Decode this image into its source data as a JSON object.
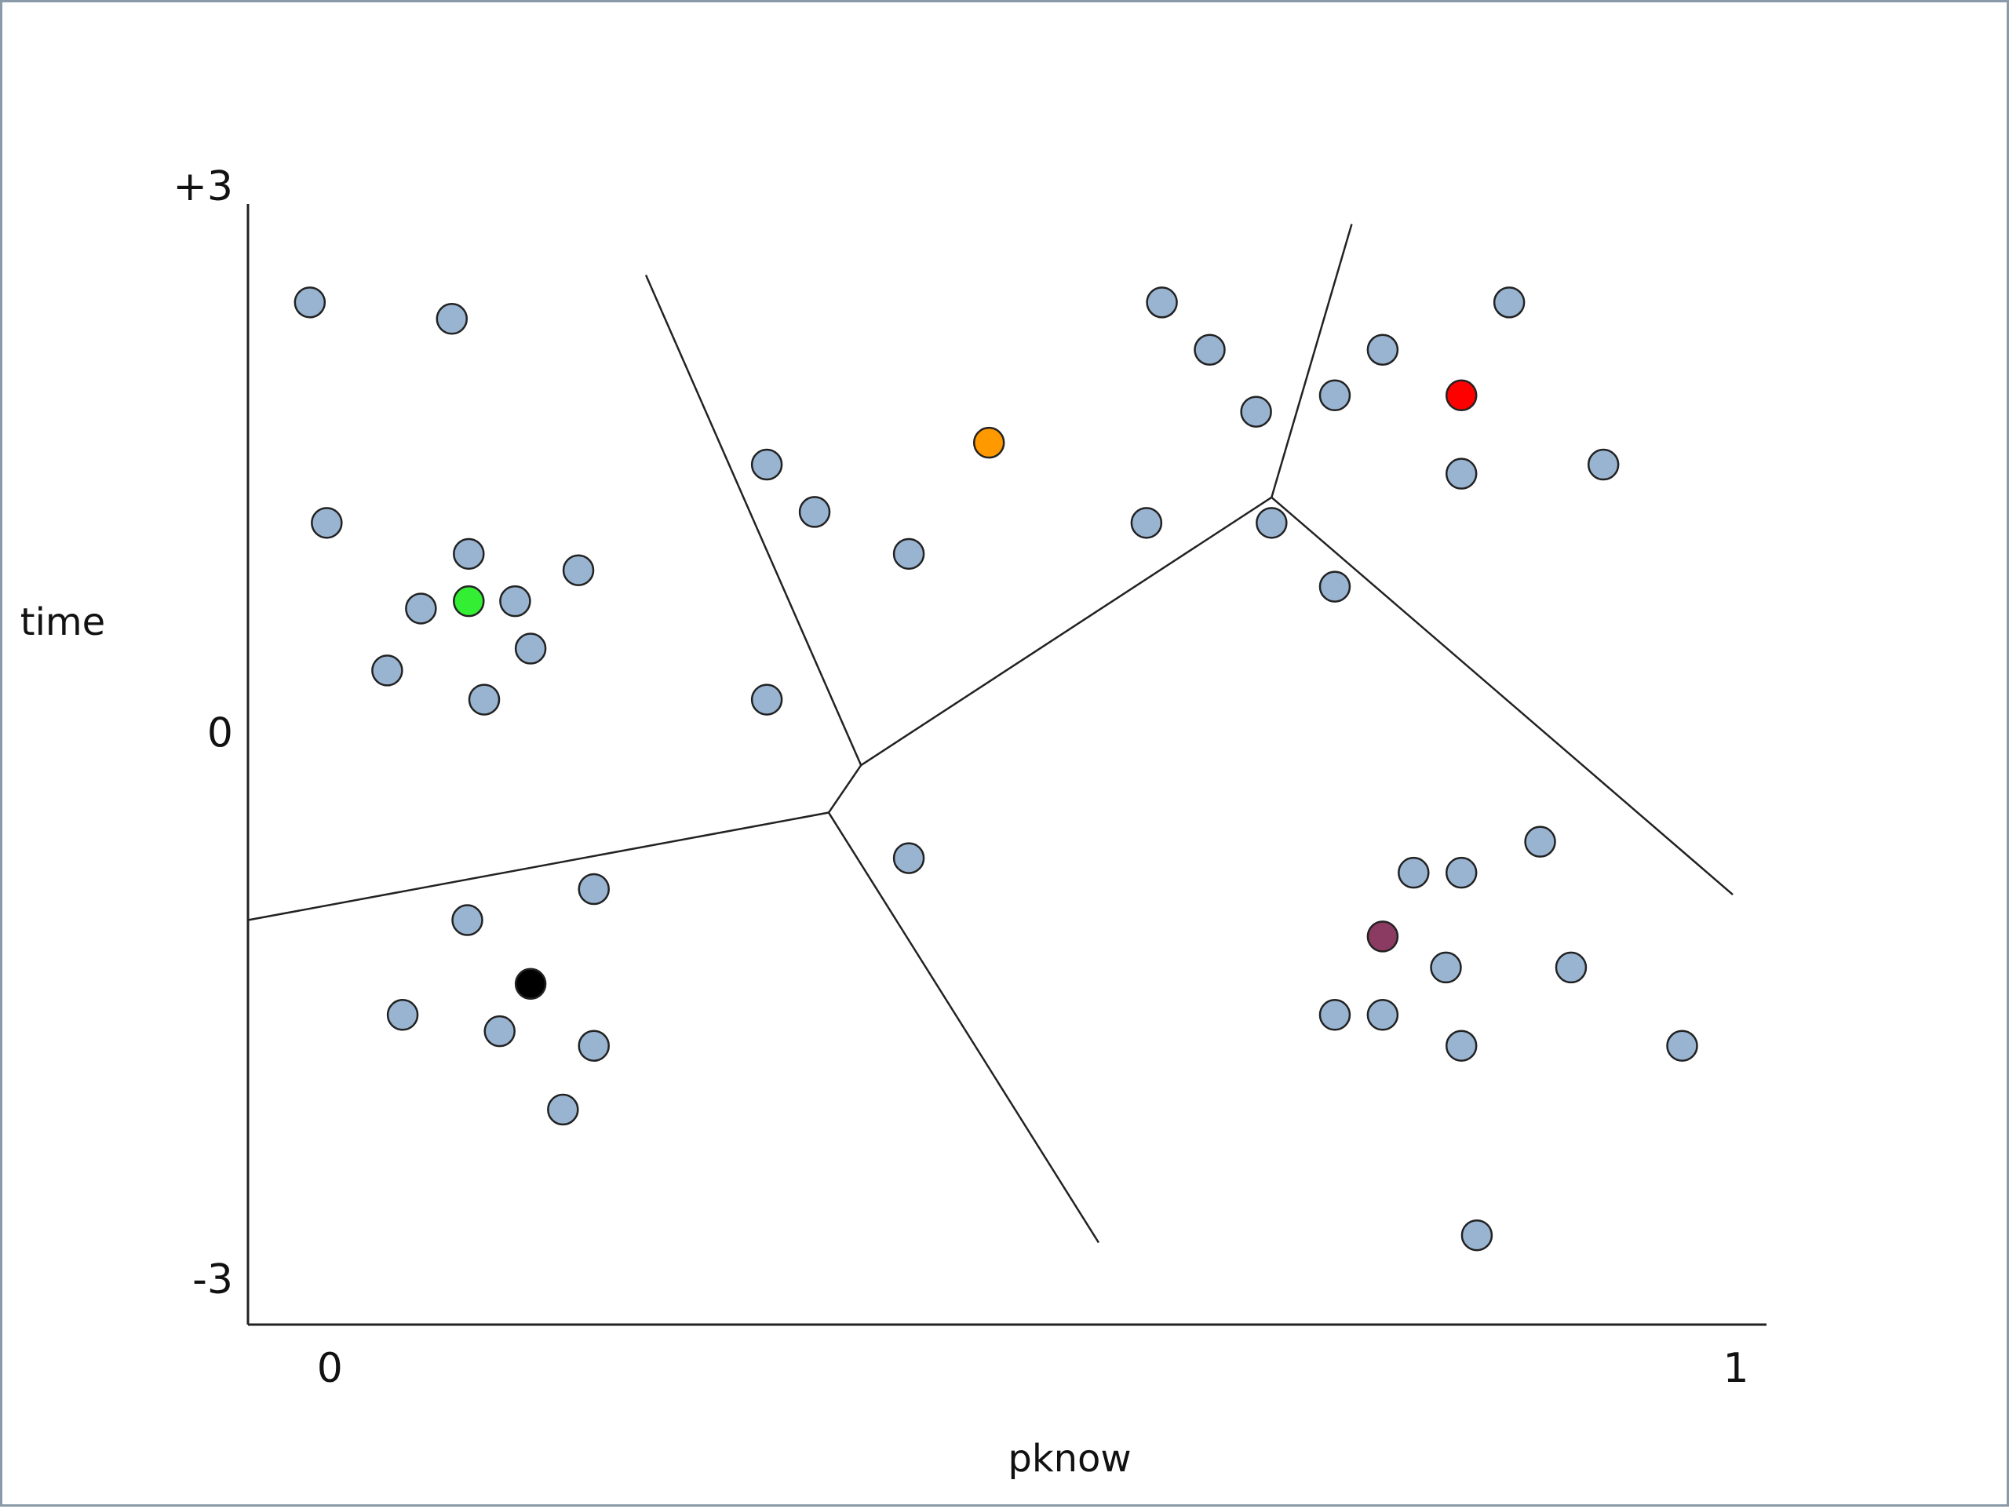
{
  "chart_data": {
    "type": "scatter",
    "title": "",
    "xlabel": "pknow",
    "ylabel": "time",
    "x_ticks": [
      {
        "value": 0,
        "label": "0"
      },
      {
        "value": 1,
        "label": "1"
      }
    ],
    "y_ticks": [
      {
        "value": 3,
        "label": "+3"
      },
      {
        "value": 0,
        "label": "0"
      },
      {
        "value": -3,
        "label": "-3"
      }
    ],
    "xlim": [
      -0.056,
      1.024
    ],
    "ylim": [
      -3.25,
      2.9
    ],
    "grid": false,
    "colors": {
      "point": "#99b4d1",
      "outline": "#222222",
      "boundary": "#222222"
    },
    "series": [
      {
        "role": "data points",
        "color": "#99b4d1",
        "points": [
          {
            "x": -0.012,
            "y": 2.36
          },
          {
            "x": 0.089,
            "y": 2.27
          },
          {
            "x": 0.0,
            "y": 1.15
          },
          {
            "x": 0.101,
            "y": 0.98
          },
          {
            "x": 0.179,
            "y": 0.89
          },
          {
            "x": 0.067,
            "y": 0.68
          },
          {
            "x": 0.134,
            "y": 0.72
          },
          {
            "x": 0.043,
            "y": 0.34
          },
          {
            "x": 0.145,
            "y": 0.46
          },
          {
            "x": 0.112,
            "y": 0.18
          },
          {
            "x": 0.313,
            "y": 0.18
          },
          {
            "x": 0.313,
            "y": 1.47
          },
          {
            "x": 0.347,
            "y": 1.21
          },
          {
            "x": 0.414,
            "y": 0.98
          },
          {
            "x": 0.594,
            "y": 2.36
          },
          {
            "x": 0.628,
            "y": 2.1
          },
          {
            "x": 0.661,
            "y": 1.76
          },
          {
            "x": 0.583,
            "y": 1.15
          },
          {
            "x": 0.672,
            "y": 1.15
          },
          {
            "x": 0.717,
            "y": 0.8
          },
          {
            "x": 0.717,
            "y": 1.85
          },
          {
            "x": 0.751,
            "y": 2.1
          },
          {
            "x": 0.841,
            "y": 2.36
          },
          {
            "x": 0.807,
            "y": 1.42
          },
          {
            "x": 0.908,
            "y": 1.47
          },
          {
            "x": 0.414,
            "y": -0.69
          },
          {
            "x": 0.19,
            "y": -0.86
          },
          {
            "x": 0.1,
            "y": -1.03
          },
          {
            "x": 0.054,
            "y": -1.55
          },
          {
            "x": 0.123,
            "y": -1.64
          },
          {
            "x": 0.19,
            "y": -1.72
          },
          {
            "x": 0.168,
            "y": -2.07
          },
          {
            "x": 0.863,
            "y": -0.6
          },
          {
            "x": 0.773,
            "y": -0.77
          },
          {
            "x": 0.807,
            "y": -0.77
          },
          {
            "x": 0.796,
            "y": -1.29
          },
          {
            "x": 0.885,
            "y": -1.29
          },
          {
            "x": 0.717,
            "y": -1.55
          },
          {
            "x": 0.751,
            "y": -1.55
          },
          {
            "x": 0.807,
            "y": -1.72
          },
          {
            "x": 0.964,
            "y": -1.72
          },
          {
            "x": 0.818,
            "y": -2.76
          }
        ]
      },
      {
        "role": "centroid",
        "color": "#33ee33",
        "points": [
          {
            "x": 0.101,
            "y": 0.72
          }
        ]
      },
      {
        "role": "centroid",
        "color": "#ff9900",
        "points": [
          {
            "x": 0.471,
            "y": 1.59
          }
        ]
      },
      {
        "role": "centroid",
        "color": "#ff0000",
        "points": [
          {
            "x": 0.807,
            "y": 1.85
          }
        ]
      },
      {
        "role": "centroid",
        "color": "#000000",
        "points": [
          {
            "x": 0.145,
            "y": -1.38
          }
        ]
      },
      {
        "role": "centroid",
        "color": "#8b3a62",
        "points": [
          {
            "x": 0.751,
            "y": -1.12
          }
        ]
      }
    ],
    "boundaries": [
      {
        "from": {
          "x": 0.227,
          "y": 2.51
        },
        "to": {
          "x": 0.38,
          "y": -0.18
        }
      },
      {
        "from": {
          "x": 0.38,
          "y": -0.18
        },
        "to": {
          "x": 0.357,
          "y": -0.44
        }
      },
      {
        "from": {
          "x": 0.357,
          "y": -0.44
        },
        "to": {
          "x": -0.056,
          "y": -1.03
        }
      },
      {
        "from": {
          "x": 0.357,
          "y": -0.44
        },
        "to": {
          "x": 0.549,
          "y": -2.8
        }
      },
      {
        "from": {
          "x": 0.38,
          "y": -0.18
        },
        "to": {
          "x": 0.672,
          "y": 1.29
        }
      },
      {
        "from": {
          "x": 0.672,
          "y": 1.29
        },
        "to": {
          "x": 0.729,
          "y": 2.79
        }
      },
      {
        "from": {
          "x": 0.672,
          "y": 1.29
        },
        "to": {
          "x": 1.0,
          "y": -0.89
        }
      }
    ]
  }
}
